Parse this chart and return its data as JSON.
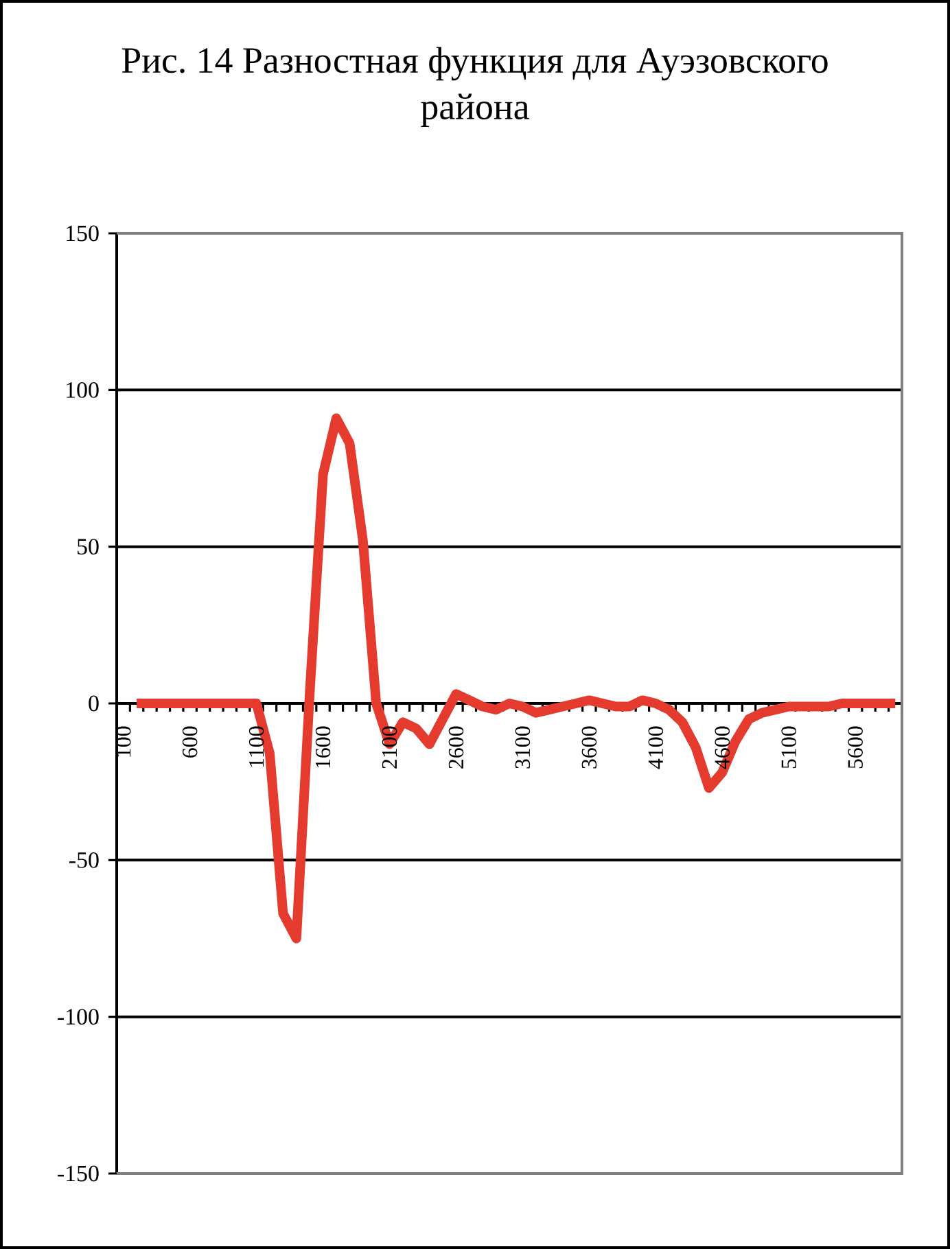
{
  "chart_data": {
    "type": "line",
    "title": "Рис. 14 Разностная функция для Ауэзовского района",
    "categories": [
      "100",
      null,
      null,
      null,
      null,
      "600",
      null,
      null,
      null,
      null,
      "1100",
      null,
      null,
      null,
      null,
      "1600",
      null,
      null,
      null,
      null,
      "2100",
      null,
      null,
      null,
      null,
      "2600",
      null,
      null,
      null,
      null,
      "3100",
      null,
      null,
      null,
      null,
      "3600",
      null,
      null,
      null,
      null,
      "4100",
      null,
      null,
      null,
      null,
      "4600",
      null,
      null,
      null,
      null,
      "5100",
      null,
      null,
      null,
      null,
      "5600",
      null,
      null,
      null
    ],
    "series": [
      {
        "color": "#e53a2e",
        "values": [
          null,
          0,
          0,
          0,
          0,
          0,
          0,
          0,
          0,
          0,
          0,
          -16,
          -67,
          -75,
          3,
          73,
          91,
          83,
          52,
          0,
          -13,
          -6,
          -8,
          -13,
          -5,
          3,
          1,
          -1,
          -2,
          0,
          -1,
          -3,
          -2,
          -1,
          0,
          1,
          0,
          -1,
          -1,
          1,
          0,
          -2,
          -6,
          -14,
          -27,
          -22,
          -12,
          -5,
          -3,
          -2,
          -1,
          -1,
          -1,
          -1,
          0,
          0,
          0,
          0,
          0
        ]
      }
    ],
    "ylim": [
      -150,
      150
    ],
    "yticks": [
      -150,
      -100,
      -50,
      0,
      50,
      100,
      150
    ],
    "grid": "y",
    "marker": "none",
    "line_style": "solid"
  }
}
